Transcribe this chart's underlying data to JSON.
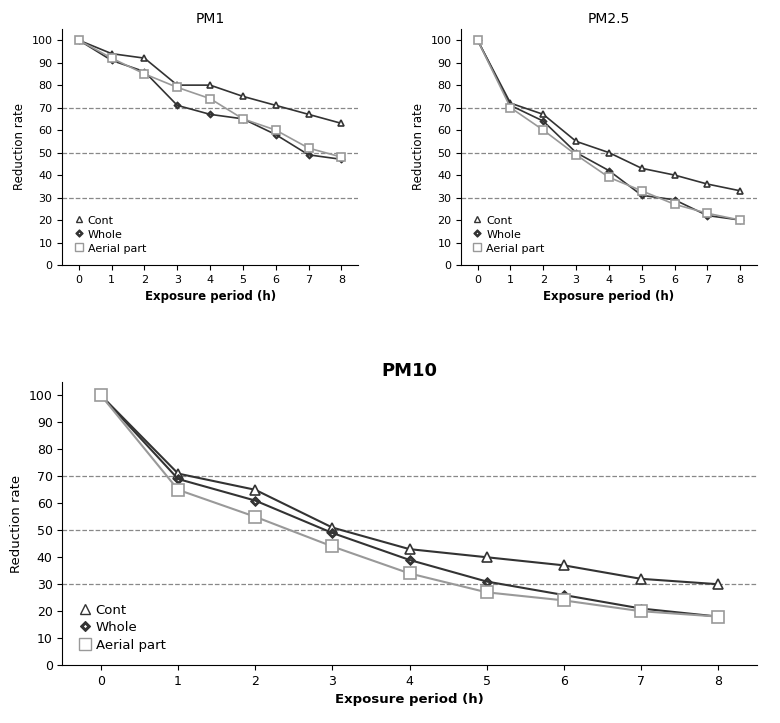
{
  "x": [
    0,
    1,
    2,
    3,
    4,
    5,
    6,
    7,
    8
  ],
  "pm1": {
    "title": "PM1",
    "cont": [
      100,
      94,
      92,
      80,
      80,
      75,
      71,
      67,
      63
    ],
    "whole": [
      100,
      91,
      86,
      71,
      67,
      65,
      58,
      49,
      47
    ],
    "aerial_part": [
      100,
      92,
      85,
      79,
      74,
      65,
      60,
      52,
      48
    ]
  },
  "pm25": {
    "title": "PM2.5",
    "cont": [
      100,
      72,
      67,
      55,
      50,
      43,
      40,
      36,
      33
    ],
    "whole": [
      100,
      71,
      64,
      50,
      42,
      31,
      29,
      22,
      20
    ],
    "aerial_part": [
      100,
      70,
      60,
      49,
      39,
      33,
      27,
      23,
      20
    ]
  },
  "pm10": {
    "title": "PM10",
    "cont": [
      100,
      71,
      65,
      51,
      43,
      40,
      37,
      32,
      30
    ],
    "whole": [
      100,
      69,
      61,
      49,
      39,
      31,
      26,
      21,
      18
    ],
    "aerial_part": [
      100,
      65,
      55,
      44,
      34,
      27,
      24,
      20,
      18
    ]
  },
  "xlabel": "Exposure period (h)",
  "ylabel": "Reduction rate",
  "yticks": [
    0,
    10,
    20,
    30,
    40,
    50,
    60,
    70,
    80,
    90,
    100
  ],
  "hlines": [
    30,
    50,
    70
  ],
  "cont_color": "#333333",
  "whole_color": "#333333",
  "aerial_color": "#999999",
  "background_color": "#ffffff"
}
